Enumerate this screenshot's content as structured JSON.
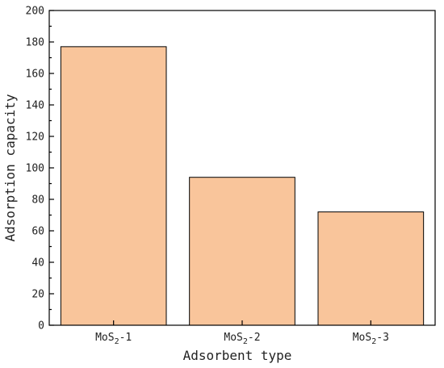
{
  "chart_data": {
    "type": "bar",
    "categories": [
      "MoS2-1",
      "MoS2-2",
      "MoS2-3"
    ],
    "category_labels": [
      {
        "base": "MoS",
        "sub": "2",
        "suffix": "-1"
      },
      {
        "base": "MoS",
        "sub": "2",
        "suffix": "-2"
      },
      {
        "base": "MoS",
        "sub": "2",
        "suffix": "-3"
      }
    ],
    "values": [
      177,
      94,
      72
    ],
    "xlabel": "Adsorbent type",
    "ylabel": "Adsorption capacity",
    "ylim": [
      0,
      200
    ],
    "yticks": [
      0,
      20,
      40,
      60,
      80,
      100,
      120,
      140,
      160,
      180,
      200
    ],
    "bar_color": "#f9c59b",
    "grid": false
  }
}
